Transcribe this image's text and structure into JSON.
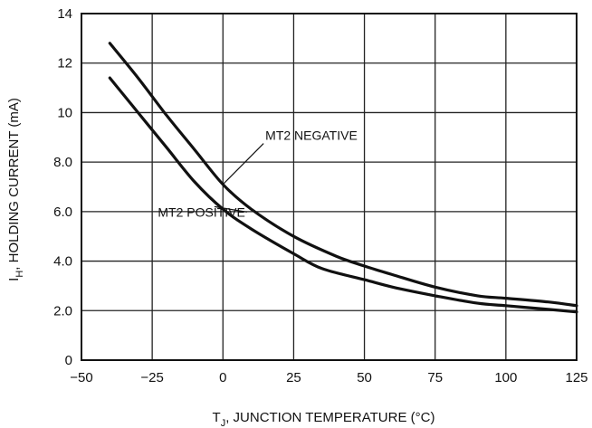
{
  "chart_data": {
    "type": "line",
    "title": "",
    "xlabel": {
      "prefix": "T",
      "subscript": "J",
      "rest": ", JUNCTION TEMPERATURE (°C)"
    },
    "ylabel": {
      "prefix": "I",
      "subscript": "H",
      "rest": ", HOLDING CURRENT (mA)"
    },
    "xlim": [
      -50,
      125
    ],
    "ylim": [
      0,
      14
    ],
    "xticks": [
      -50,
      -25,
      0,
      25,
      50,
      75,
      100,
      125
    ],
    "xtick_labels": [
      "−50",
      "−25",
      "0",
      "25",
      "50",
      "75",
      "100",
      "125"
    ],
    "yticks": [
      0,
      2,
      4,
      6,
      8,
      10,
      12,
      14
    ],
    "ytick_labels": [
      "0",
      "2.0",
      "4.0",
      "6.0",
      "8.0",
      "10",
      "12",
      "14"
    ],
    "grid": true,
    "series": [
      {
        "name": "MT2 NEGATIVE",
        "x": [
          -40,
          -30,
          -20,
          -10,
          0,
          10,
          25,
          40,
          50,
          60,
          75,
          90,
          100,
          115,
          125
        ],
        "y": [
          12.8,
          11.4,
          9.9,
          8.5,
          7.1,
          6.1,
          5.0,
          4.2,
          3.8,
          3.45,
          2.95,
          2.6,
          2.5,
          2.35,
          2.2
        ]
      },
      {
        "name": "MT2 POSITIVE",
        "x": [
          -40,
          -30,
          -20,
          -10,
          0,
          10,
          25,
          35,
          50,
          60,
          75,
          90,
          100,
          115,
          125
        ],
        "y": [
          11.4,
          10.0,
          8.6,
          7.2,
          6.1,
          5.3,
          4.3,
          3.7,
          3.25,
          2.95,
          2.6,
          2.3,
          2.2,
          2.05,
          1.95
        ]
      }
    ],
    "annotations": [
      {
        "text": "MT2 NEGATIVE",
        "series": 0,
        "label_x": 15,
        "label_y": 8.9,
        "point_x": 0,
        "point_y": 7.1
      },
      {
        "text": "MT2 POSITIVE",
        "series": 1,
        "label_x": -23,
        "label_y": 5.8,
        "point_x": -3,
        "point_y": 6.2
      }
    ]
  }
}
